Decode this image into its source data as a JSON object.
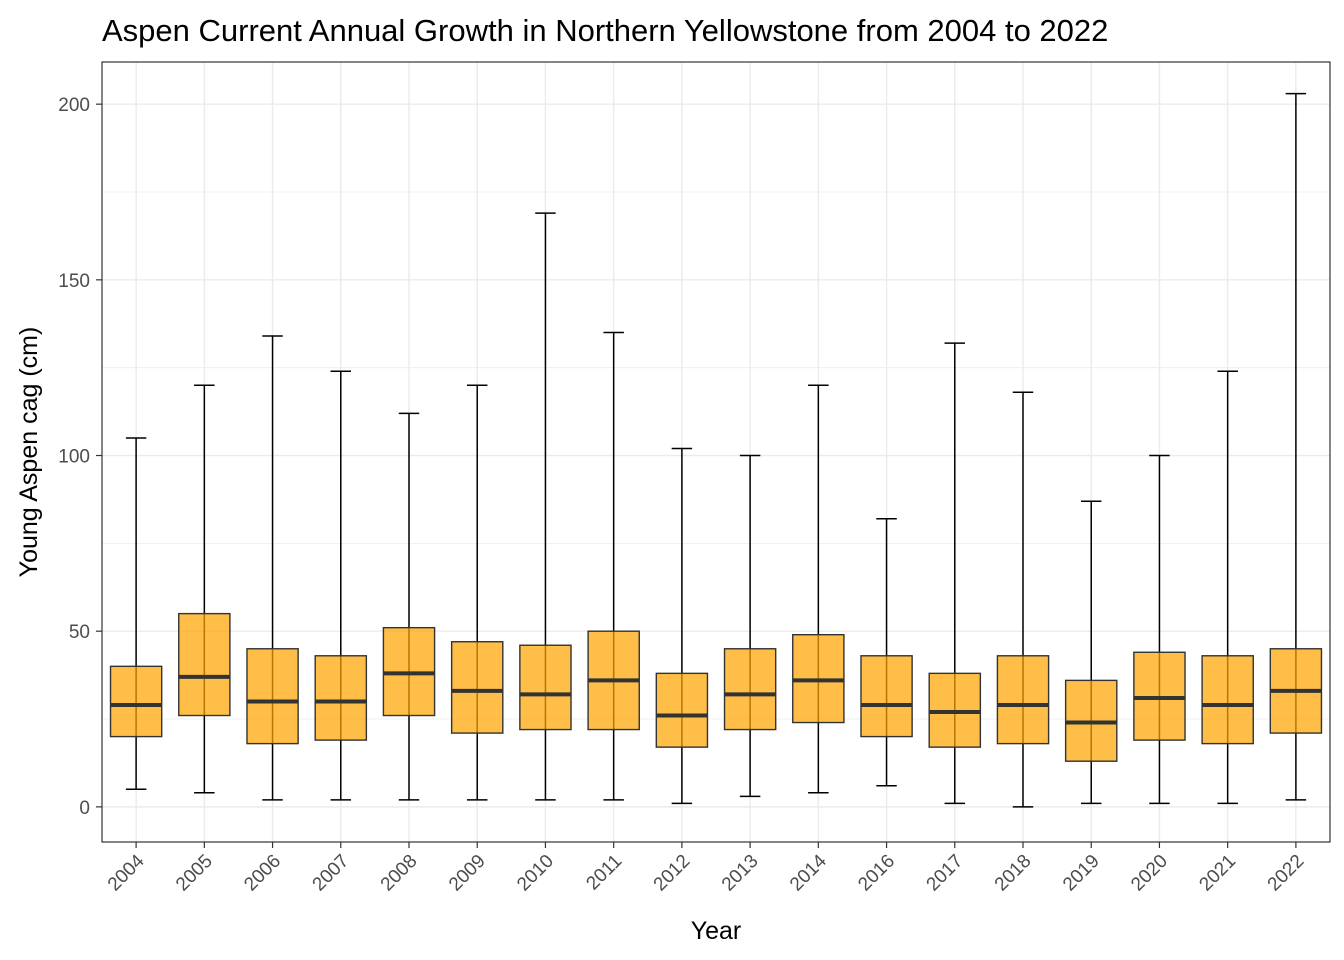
{
  "chart_data": {
    "type": "box",
    "title": "Aspen Current Annual Growth in Northern Yellowstone from 2004 to 2022",
    "xlabel": "Year",
    "ylabel": "Young Aspen cag (cm)",
    "ylim": [
      -10,
      212
    ],
    "yticks": [
      0,
      50,
      100,
      150,
      200
    ],
    "grid": true,
    "legend": "none",
    "categories": [
      "2004",
      "2005",
      "2006",
      "2007",
      "2008",
      "2009",
      "2010",
      "2011",
      "2012",
      "2013",
      "2014",
      "2016",
      "2017",
      "2018",
      "2019",
      "2020",
      "2021",
      "2022"
    ],
    "boxes": [
      {
        "min": 5,
        "q1": 20,
        "median": 29,
        "q3": 40,
        "max": 105
      },
      {
        "min": 4,
        "q1": 26,
        "median": 37,
        "q3": 55,
        "max": 120
      },
      {
        "min": 2,
        "q1": 18,
        "median": 30,
        "q3": 45,
        "max": 134
      },
      {
        "min": 2,
        "q1": 19,
        "median": 30,
        "q3": 43,
        "max": 124
      },
      {
        "min": 2,
        "q1": 26,
        "median": 38,
        "q3": 51,
        "max": 112
      },
      {
        "min": 2,
        "q1": 21,
        "median": 33,
        "q3": 47,
        "max": 120
      },
      {
        "min": 2,
        "q1": 22,
        "median": 32,
        "q3": 46,
        "max": 169
      },
      {
        "min": 2,
        "q1": 22,
        "median": 36,
        "q3": 50,
        "max": 135
      },
      {
        "min": 1,
        "q1": 17,
        "median": 26,
        "q3": 38,
        "max": 102
      },
      {
        "min": 3,
        "q1": 22,
        "median": 32,
        "q3": 45,
        "max": 100
      },
      {
        "min": 4,
        "q1": 24,
        "median": 36,
        "q3": 49,
        "max": 120
      },
      {
        "min": 6,
        "q1": 20,
        "median": 29,
        "q3": 43,
        "max": 82
      },
      {
        "min": 1,
        "q1": 17,
        "median": 27,
        "q3": 38,
        "max": 132
      },
      {
        "min": 0,
        "q1": 18,
        "median": 29,
        "q3": 43,
        "max": 118
      },
      {
        "min": 1,
        "q1": 13,
        "median": 24,
        "q3": 36,
        "max": 87
      },
      {
        "min": 1,
        "q1": 19,
        "median": 31,
        "q3": 44,
        "max": 100
      },
      {
        "min": 1,
        "q1": 18,
        "median": 29,
        "q3": 43,
        "max": 124
      },
      {
        "min": 2,
        "q1": 21,
        "median": 33,
        "q3": 45,
        "max": 203
      }
    ],
    "colors": {
      "box_fill": "#FFA500",
      "box_fill_opacity": 0.72,
      "box_border": "#333333",
      "whisker": "#000000",
      "median": "#333333",
      "grid": "#ebebeb",
      "panel_border": "#333333"
    }
  }
}
